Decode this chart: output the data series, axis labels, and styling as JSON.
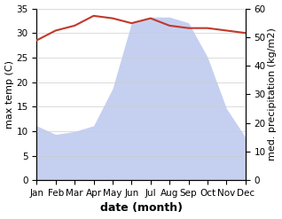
{
  "months": [
    "Jan",
    "Feb",
    "Mar",
    "Apr",
    "May",
    "Jun",
    "Jul",
    "Aug",
    "Sep",
    "Oct",
    "Nov",
    "Dec"
  ],
  "month_x": [
    0,
    1,
    2,
    3,
    4,
    5,
    6,
    7,
    8,
    9,
    10,
    11
  ],
  "temperature": [
    28.5,
    30.5,
    31.5,
    33.5,
    33.0,
    32.0,
    33.0,
    31.5,
    31.0,
    31.0,
    30.5,
    30.0
  ],
  "precipitation": [
    19,
    16,
    17,
    19,
    32,
    55,
    57,
    57,
    55,
    43,
    25,
    15
  ],
  "temp_color": "#c0392b",
  "precip_fill_color": "#c5d0f0",
  "background_color": "#ffffff",
  "ylabel_left": "max temp (C)",
  "ylabel_right": "med. precipitation (kg/m2)",
  "xlabel": "date (month)",
  "ylim_left": [
    0,
    35
  ],
  "ylim_right": [
    0,
    60
  ],
  "yticks_left": [
    0,
    5,
    10,
    15,
    20,
    25,
    30,
    35
  ],
  "yticks_right": [
    0,
    10,
    20,
    30,
    40,
    50,
    60
  ],
  "axis_fontsize": 9,
  "tick_fontsize": 7.5
}
